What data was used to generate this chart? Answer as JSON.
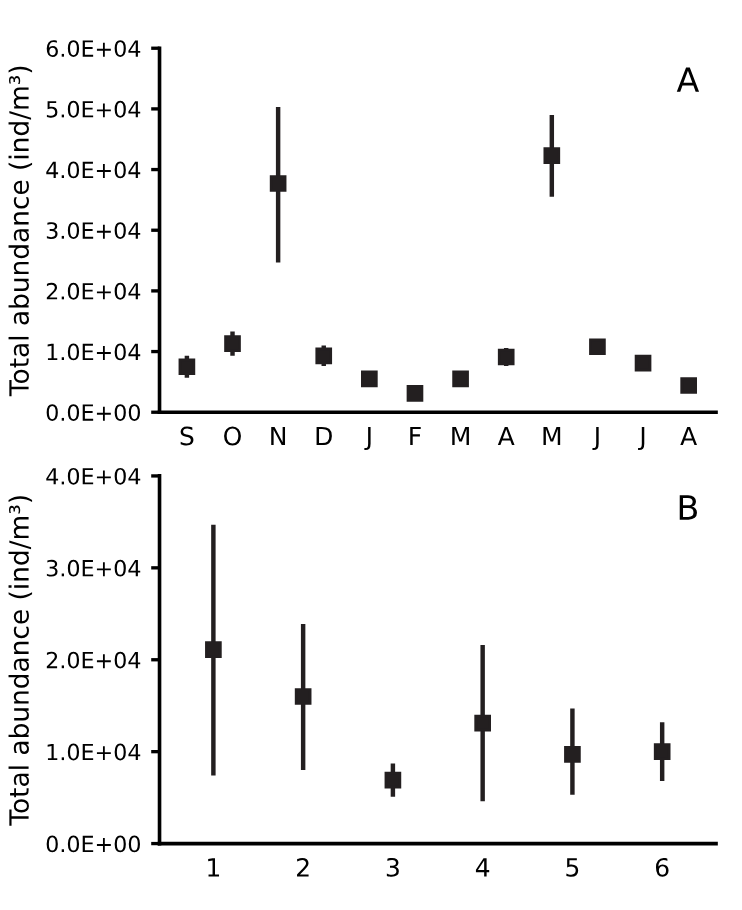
{
  "chart_data": [
    {
      "type": "scatter",
      "categories": [
        "S",
        "O",
        "N",
        "D",
        "J",
        "F",
        "M",
        "A",
        "M",
        "J",
        "J",
        "A"
      ],
      "ylabel": "Total abundance (ind/m³)",
      "annotations": [
        "A"
      ],
      "marker": "square",
      "series": [
        {
          "color": "#231f20",
          "values": [
            7500,
            11300,
            37700,
            9300,
            5500,
            3100,
            5500,
            9100,
            42300,
            10800,
            8100,
            4400
          ],
          "errors": [
            1800,
            2000,
            [
              24700,
              50300
            ],
            1700,
            null,
            null,
            null,
            1500,
            [
              35500,
              49000
            ],
            1200,
            null,
            null
          ]
        }
      ],
      "ylim": [
        0,
        60000
      ],
      "yticks": [
        {
          "value": 0,
          "label": "0.0E+00"
        },
        {
          "value": 10000,
          "label": "1.0E+04"
        },
        {
          "value": 20000,
          "label": "2.0E+04"
        },
        {
          "value": 30000,
          "label": "3.0E+04"
        },
        {
          "value": 40000,
          "label": "4.0E+04"
        },
        {
          "value": 50000,
          "label": "5.0E+04"
        },
        {
          "value": 60000,
          "label": "6.0E+04"
        }
      ]
    },
    {
      "type": "scatter",
      "categories": [
        "1",
        "2",
        "3",
        "4",
        "5",
        "6"
      ],
      "ylabel": "Total abundance (ind/m³)",
      "annotations": [
        "B"
      ],
      "marker": "square",
      "series": [
        {
          "color": "#231f20",
          "values": [
            21100,
            16000,
            6900,
            13100,
            9700,
            10000
          ],
          "errors": [
            [
              7400,
              34700
            ],
            [
              8000,
              23900
            ],
            [
              5100,
              8700
            ],
            [
              4600,
              21600
            ],
            [
              5300,
              14700
            ],
            [
              6800,
              13200
            ]
          ]
        }
      ],
      "ylim": [
        0,
        40000
      ],
      "yticks": [
        {
          "value": 0,
          "label": "0.0E+00"
        },
        {
          "value": 10000,
          "label": "1.0E+04"
        },
        {
          "value": 20000,
          "label": "2.0E+04"
        },
        {
          "value": 30000,
          "label": "3.0E+04"
        },
        {
          "value": 40000,
          "label": "4.0E+04"
        }
      ]
    }
  ]
}
